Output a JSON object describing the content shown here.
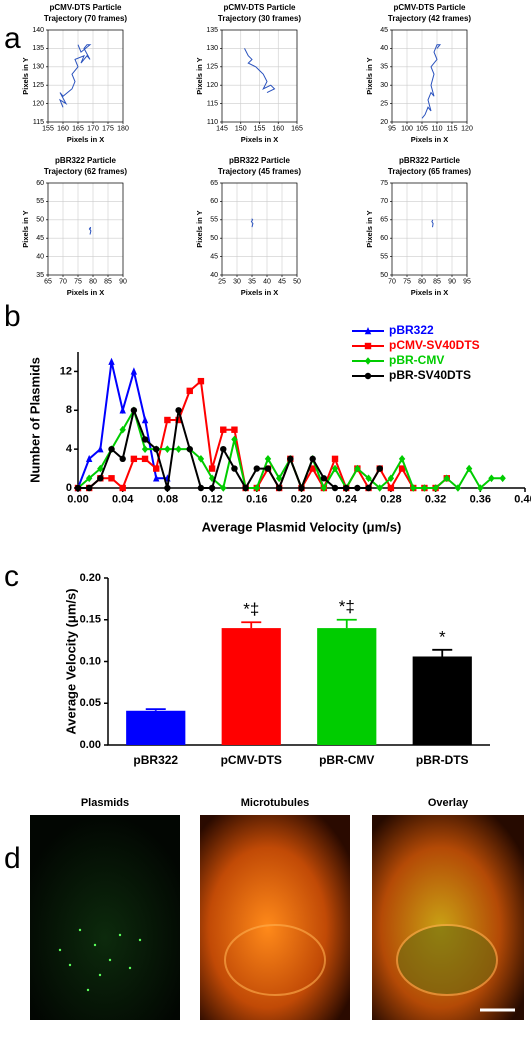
{
  "panel_labels": [
    "a",
    "b",
    "c",
    "d"
  ],
  "images": {
    "titles": [
      "Plasmids",
      "Microtubules",
      "Overlay"
    ]
  },
  "chart_data": [
    {
      "type": "trajectory",
      "title": "pCMV-DTS Particle",
      "subtitle": "Trajectory (70 frames)",
      "x_label": "Pixels in X",
      "y_label": "Pixels in Y",
      "color": "#2a52be",
      "grid": true,
      "x": [
        160,
        159,
        161,
        159,
        160,
        163,
        164,
        163,
        165,
        164,
        167,
        166,
        168,
        169,
        167,
        168,
        169,
        166,
        165
      ],
      "values": [
        119,
        121,
        120,
        123,
        122,
        124,
        126,
        128,
        130,
        132,
        133,
        131,
        133,
        132,
        135,
        136,
        136,
        134,
        136
      ],
      "xlim": [
        155,
        180
      ],
      "xticks": [
        155,
        160,
        165,
        170,
        175,
        180
      ],
      "ylim": [
        115,
        140
      ],
      "yticks": [
        115,
        120,
        125,
        130,
        135,
        140
      ]
    },
    {
      "type": "trajectory",
      "title": "pCMV-DTS Particle",
      "subtitle": "Trajectory (30 frames)",
      "x_label": "Pixels in X",
      "y_label": "Pixels in Y",
      "color": "#2a52be",
      "grid": true,
      "x": [
        151,
        152,
        153,
        152,
        154,
        155,
        156,
        157,
        156,
        158,
        159,
        157
      ],
      "values": [
        130,
        128,
        127,
        126,
        125,
        124,
        123,
        121,
        119,
        120,
        119,
        118
      ],
      "xlim": [
        145,
        165
      ],
      "xticks": [
        145,
        150,
        155,
        160,
        165
      ],
      "ylim": [
        110,
        135
      ],
      "yticks": [
        110,
        115,
        120,
        125,
        130,
        135
      ]
    },
    {
      "type": "trajectory",
      "title": "pCMV-DTS Particle",
      "subtitle": "Trajectory (42 frames)",
      "x_label": "Pixels in X",
      "y_label": "Pixels in Y",
      "color": "#2a52be",
      "grid": true,
      "x": [
        105,
        106,
        107,
        108,
        107,
        108,
        109,
        108,
        109,
        108,
        110,
        109,
        110,
        111,
        110
      ],
      "values": [
        21,
        22,
        24,
        23,
        26,
        28,
        27,
        30,
        33,
        35,
        37,
        39,
        41,
        41,
        40
      ],
      "xlim": [
        95,
        120
      ],
      "xticks": [
        95,
        100,
        105,
        110,
        115,
        120
      ],
      "ylim": [
        20,
        45
      ],
      "yticks": [
        20,
        25,
        30,
        35,
        40,
        45
      ]
    },
    {
      "type": "trajectory",
      "title": "pBR322 Particle",
      "subtitle": "Trajectory (62 frames)",
      "x_label": "Pixels in X",
      "y_label": "Pixels in Y",
      "color": "#2a52be",
      "grid": true,
      "x": [
        79,
        79.3,
        78.8,
        79.2,
        79
      ],
      "values": [
        46,
        47,
        47.5,
        48,
        47.2
      ],
      "xlim": [
        65,
        90
      ],
      "xticks": [
        65,
        70,
        75,
        80,
        85,
        90
      ],
      "ylim": [
        35,
        60
      ],
      "yticks": [
        35,
        40,
        45,
        50,
        55,
        60
      ]
    },
    {
      "type": "trajectory",
      "title": "pBR322 Particle",
      "subtitle": "Trajectory (45 frames)",
      "x_label": "Pixels in X",
      "y_label": "Pixels in Y",
      "color": "#2a52be",
      "grid": true,
      "x": [
        35,
        35.3,
        34.8,
        35.2,
        34.9
      ],
      "values": [
        53,
        54,
        54.5,
        55,
        55.3
      ],
      "xlim": [
        25,
        50
      ],
      "xticks": [
        25,
        30,
        35,
        40,
        45,
        50
      ],
      "ylim": [
        40,
        65
      ],
      "yticks": [
        40,
        45,
        50,
        55,
        60,
        65
      ]
    },
    {
      "type": "trajectory",
      "title": "pBR322 Particle",
      "subtitle": "Trajectory (65 frames)",
      "x_label": "Pixels in X",
      "y_label": "Pixels in Y",
      "color": "#2a52be",
      "grid": true,
      "x": [
        83.5,
        83.7,
        83.3,
        83.6
      ],
      "values": [
        63,
        64,
        64.5,
        65
      ],
      "xlim": [
        70,
        95
      ],
      "xticks": [
        70,
        75,
        80,
        85,
        90,
        95
      ],
      "ylim": [
        50,
        75
      ],
      "yticks": [
        50,
        55,
        60,
        65,
        70,
        75
      ]
    },
    {
      "type": "line",
      "x_label": "Average Plasmid Velocity (μm/s)",
      "y_label": "Number of Plasmids",
      "legend": "top-right",
      "xlim": [
        0,
        0.4
      ],
      "xticks": [
        {
          "value": 0,
          "label": "0.00"
        },
        {
          "value": 0.04,
          "label": "0.04"
        },
        {
          "value": 0.08,
          "label": "0.08"
        },
        {
          "value": 0.12,
          "label": "0.12"
        },
        {
          "value": 0.16,
          "label": "0.16"
        },
        {
          "value": 0.2,
          "label": "0.20"
        },
        {
          "value": 0.24,
          "label": "0.24"
        },
        {
          "value": 0.28,
          "label": "0.28"
        },
        {
          "value": 0.32,
          "label": "0.32"
        },
        {
          "value": 0.36,
          "label": "0.36"
        },
        {
          "value": 0.4,
          "label": "0.40"
        }
      ],
      "ylim": [
        0,
        14
      ],
      "yticks": [
        0,
        4,
        8,
        12
      ],
      "series": [
        {
          "name": "pBR322",
          "color": "#0000ff",
          "marker": "triangle",
          "x": [
            0,
            0.01,
            0.02,
            0.03,
            0.04,
            0.05,
            0.06,
            0.07,
            0.08
          ],
          "values": [
            0,
            3,
            4,
            13,
            8,
            12,
            7,
            1,
            1
          ]
        },
        {
          "name": "pCMV-SV40DTS",
          "color": "#ff0000",
          "marker": "square",
          "x": [
            0,
            0.01,
            0.02,
            0.03,
            0.04,
            0.05,
            0.06,
            0.07,
            0.08,
            0.09,
            0.1,
            0.11,
            0.12,
            0.13,
            0.14,
            0.15,
            0.16,
            0.17,
            0.18,
            0.19,
            0.2,
            0.21,
            0.22,
            0.23,
            0.24,
            0.25,
            0.26,
            0.27,
            0.28,
            0.29,
            0.3,
            0.31,
            0.32,
            0.33
          ],
          "values": [
            0,
            0,
            1,
            1,
            0,
            3,
            3,
            2,
            7,
            7,
            10,
            11,
            2,
            6,
            6,
            0,
            0,
            2,
            0,
            3,
            0,
            2,
            0,
            3,
            0,
            2,
            0,
            2,
            0,
            2,
            0,
            0,
            0,
            1
          ]
        },
        {
          "name": "pBR-CMV",
          "color": "#00cc00",
          "marker": "diamond",
          "x": [
            0,
            0.01,
            0.02,
            0.03,
            0.04,
            0.05,
            0.06,
            0.07,
            0.08,
            0.09,
            0.1,
            0.11,
            0.12,
            0.13,
            0.14,
            0.15,
            0.16,
            0.17,
            0.18,
            0.19,
            0.2,
            0.21,
            0.22,
            0.23,
            0.24,
            0.25,
            0.26,
            0.27,
            0.28,
            0.29,
            0.3,
            0.31,
            0.32,
            0.33,
            0.34,
            0.35,
            0.36,
            0.37,
            0.38
          ],
          "values": [
            0,
            1,
            2,
            4,
            6,
            8,
            4,
            4,
            4,
            4,
            4,
            3,
            1,
            0,
            5,
            0,
            0,
            3,
            1,
            3,
            0,
            3,
            0,
            2,
            0,
            2,
            1,
            0,
            1,
            3,
            0,
            0,
            0,
            1,
            0,
            2,
            0,
            1,
            1
          ]
        },
        {
          "name": "pBR-SV40DTS",
          "color": "#000000",
          "marker": "circle",
          "x": [
            0,
            0.01,
            0.02,
            0.03,
            0.04,
            0.05,
            0.06,
            0.07,
            0.08,
            0.09,
            0.1,
            0.11,
            0.12,
            0.13,
            0.14,
            0.15,
            0.16,
            0.17,
            0.18,
            0.19,
            0.2,
            0.21,
            0.22,
            0.23,
            0.24,
            0.25,
            0.26,
            0.27
          ],
          "values": [
            0,
            0,
            1,
            4,
            3,
            8,
            5,
            4,
            0,
            8,
            4,
            0,
            0,
            4,
            2,
            0,
            2,
            2,
            0,
            3,
            0,
            3,
            1,
            0,
            0,
            0,
            0,
            2
          ]
        }
      ]
    },
    {
      "type": "bar",
      "y_label": "Average Velocity (μm/s)",
      "categories": [
        "pBR322",
        "pCMV-DTS",
        "pBR-CMV",
        "pBR-DTS"
      ],
      "values": [
        0.041,
        0.14,
        0.14,
        0.106
      ],
      "errors": [
        0.002,
        0.007,
        0.01,
        0.008
      ],
      "colors": [
        "#0000ff",
        "#ff0000",
        "#00cc00",
        "#000000"
      ],
      "annotations": [
        null,
        "*‡",
        "*‡",
        "*"
      ],
      "ylim": [
        0,
        0.2
      ],
      "yticks": [
        {
          "value": 0,
          "label": "0.00"
        },
        {
          "value": 0.05,
          "label": "0.05"
        },
        {
          "value": 0.1,
          "label": "0.10"
        },
        {
          "value": 0.15,
          "label": "0.15"
        },
        {
          "value": 0.2,
          "label": "0.20"
        }
      ]
    }
  ]
}
